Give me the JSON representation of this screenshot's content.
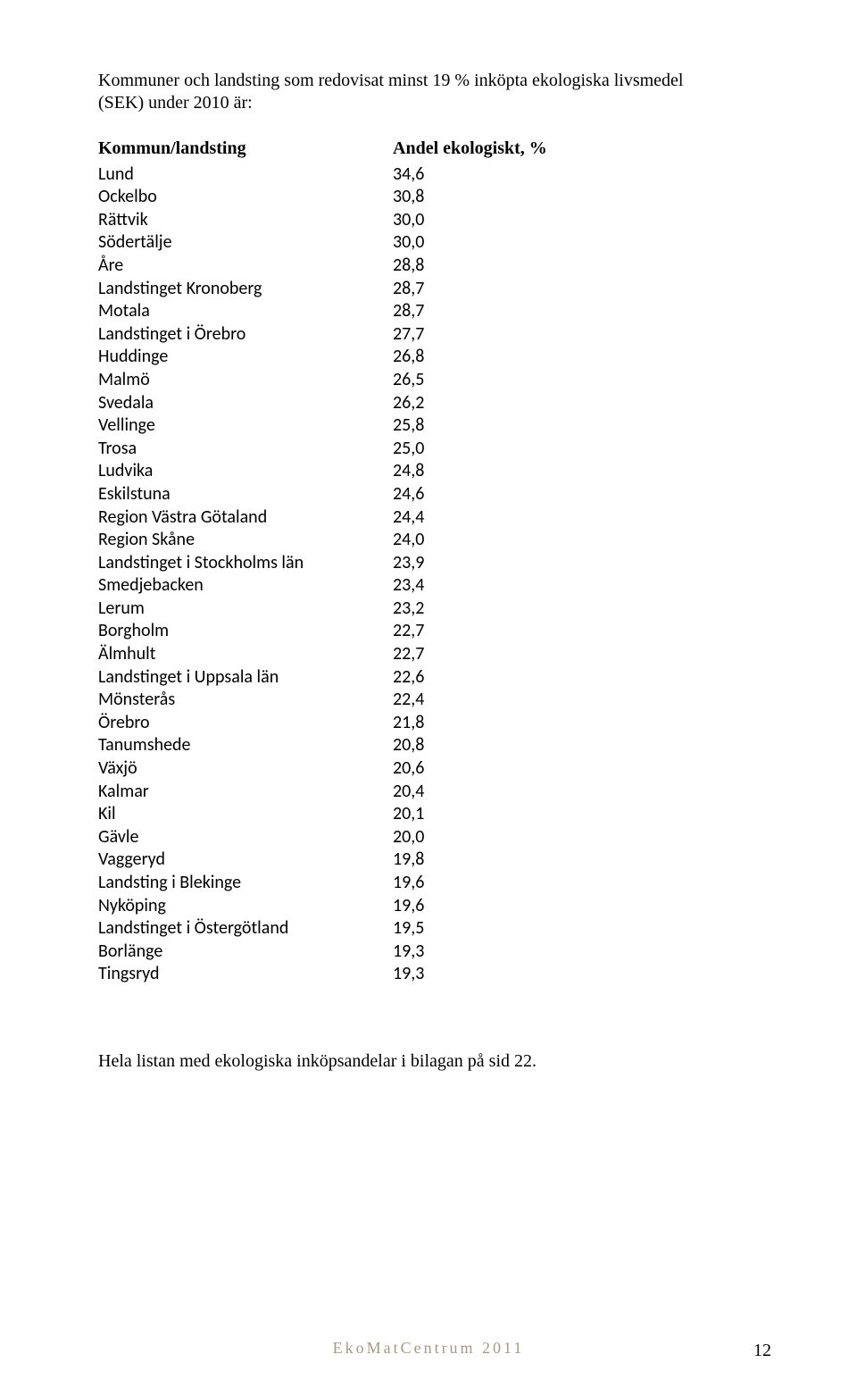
{
  "intro": {
    "line1": "Kommuner och landsting som redovisat minst 19 % inköpta ekologiska livsmedel",
    "line2": "(SEK) under 2010 är:"
  },
  "table": {
    "header_name": "Kommun/landsting",
    "header_value": "Andel ekologiskt, %",
    "rows": [
      {
        "name": "Lund",
        "value": "34,6"
      },
      {
        "name": "Ockelbo",
        "value": "30,8"
      },
      {
        "name": "Rättvik",
        "value": "30,0"
      },
      {
        "name": "Södertälje",
        "value": "30,0"
      },
      {
        "name": "Åre",
        "value": "28,8"
      },
      {
        "name": "Landstinget Kronoberg",
        "value": "28,7"
      },
      {
        "name": "Motala",
        "value": "28,7"
      },
      {
        "name": "Landstinget i Örebro",
        "value": "27,7"
      },
      {
        "name": "Huddinge",
        "value": "26,8"
      },
      {
        "name": "Malmö",
        "value": "26,5"
      },
      {
        "name": "Svedala",
        "value": "26,2"
      },
      {
        "name": "Vellinge",
        "value": "25,8"
      },
      {
        "name": "Trosa",
        "value": "25,0"
      },
      {
        "name": "Ludvika",
        "value": "24,8"
      },
      {
        "name": "Eskilstuna",
        "value": "24,6"
      },
      {
        "name": "Region Västra Götaland",
        "value": "24,4"
      },
      {
        "name": "Region Skåne",
        "value": "24,0"
      },
      {
        "name": "Landstinget i Stockholms län",
        "value": "23,9"
      },
      {
        "name": "Smedjebacken",
        "value": "23,4"
      },
      {
        "name": "Lerum",
        "value": "23,2"
      },
      {
        "name": "Borgholm",
        "value": "22,7"
      },
      {
        "name": "Älmhult",
        "value": "22,7"
      },
      {
        "name": "Landstinget i Uppsala län",
        "value": "22,6"
      },
      {
        "name": "Mönsterås",
        "value": "22,4"
      },
      {
        "name": "Örebro",
        "value": "21,8"
      },
      {
        "name": "Tanumshede",
        "value": "20,8"
      },
      {
        "name": "Växjö",
        "value": "20,6"
      },
      {
        "name": "Kalmar",
        "value": "20,4"
      },
      {
        "name": "Kil",
        "value": "20,1"
      },
      {
        "name": "Gävle",
        "value": "20,0"
      },
      {
        "name": "Vaggeryd",
        "value": "19,8"
      },
      {
        "name": "Landsting i Blekinge",
        "value": "19,6"
      },
      {
        "name": "Nyköping",
        "value": "19,6"
      },
      {
        "name": "Landstinget i Östergötland",
        "value": "19,5"
      },
      {
        "name": "Borlänge",
        "value": "19,3"
      },
      {
        "name": "Tingsryd",
        "value": "19,3"
      }
    ]
  },
  "closing_text": "Hela listan med ekologiska inköpsandelar i bilagan på sid 22.",
  "footer_text": "EkoMatCentrum 2011",
  "page_number": "12"
}
